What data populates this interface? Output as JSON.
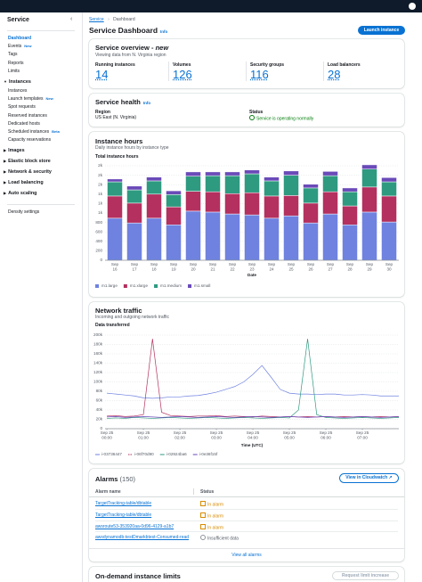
{
  "sidebar": {
    "title": "Service",
    "links": [
      {
        "label": "Dashboard"
      },
      {
        "label": "Events",
        "badge": "New"
      },
      {
        "label": "Tags"
      },
      {
        "label": "Reports"
      },
      {
        "label": "Limits"
      }
    ],
    "sections": [
      {
        "title": "Instances",
        "links": [
          {
            "label": "Instances"
          },
          {
            "label": "Launch templates",
            "badge": "New"
          },
          {
            "label": "Spot requests"
          },
          {
            "label": "Reserved instances"
          },
          {
            "label": "Dedicated hosts"
          },
          {
            "label": "Scheduled instances",
            "badge": "Beta"
          },
          {
            "label": "Capacity reservations"
          }
        ]
      },
      {
        "title": "Images"
      },
      {
        "title": "Elastic block store"
      },
      {
        "title": "Network & security"
      },
      {
        "title": "Load balancing"
      },
      {
        "title": "Auto scaling"
      }
    ],
    "footer": "Density settings"
  },
  "breadcrumb": [
    "Service",
    "Dashboard"
  ],
  "header": {
    "title": "Service Dashboard",
    "info": "Info",
    "button": "Launch instance"
  },
  "overview": {
    "title": "Service overview -",
    "tag": "new",
    "subtitle": "Viewing data from N. Virginia region",
    "stats": [
      {
        "label": "Running instances",
        "value": 14
      },
      {
        "label": "Volumes",
        "value": 126
      },
      {
        "label": "Security groups",
        "value": 116
      },
      {
        "label": "Load balancers",
        "value": 28
      }
    ]
  },
  "health": {
    "title": "Service health",
    "info": "Info",
    "region_label": "Region",
    "region": "US East (N. Virginia)",
    "status_label": "Status",
    "status": "Service is operating normally"
  },
  "chart_data": [
    {
      "type": "bar",
      "stacked": true,
      "title": "Instance hours",
      "subtitle": "Daily instance hours by instance type",
      "y_label": "Total instance hours",
      "x_label": "Date",
      "categories": [
        "Sep 16",
        "Sep 17",
        "Sep 18",
        "Sep 19",
        "Sep 20",
        "Sep 21",
        "Sep 22",
        "Sep 23",
        "Sep 24",
        "Sep 25",
        "Sep 26",
        "Sep 27",
        "Sep 28",
        "Sep 29",
        "Sep 30"
      ],
      "series": [
        {
          "name": "m1.large",
          "color": "#6f82e0",
          "values": [
            890,
            790,
            890,
            750,
            1040,
            1020,
            980,
            960,
            890,
            940,
            790,
            980,
            750,
            1020,
            810
          ]
        },
        {
          "name": "m1.xlarge",
          "color": "#b3305f",
          "values": [
            470,
            420,
            510,
            380,
            420,
            430,
            430,
            470,
            470,
            430,
            420,
            470,
            400,
            530,
            550
          ]
        },
        {
          "name": "m1.medium",
          "color": "#2e9a80",
          "values": [
            300,
            280,
            280,
            260,
            320,
            340,
            380,
            400,
            320,
            430,
            320,
            340,
            300,
            380,
            300
          ]
        },
        {
          "name": "m1.small",
          "color": "#6a4ab8",
          "values": [
            60,
            80,
            80,
            80,
            90,
            80,
            80,
            80,
            80,
            90,
            80,
            90,
            80,
            90,
            90
          ]
        }
      ],
      "ylim": [
        0,
        2000
      ],
      "yticks": [
        0,
        200,
        400,
        600,
        800,
        {
          "value": 1000,
          "label": "1k"
        },
        {
          "value": 1200,
          "label": "1k"
        },
        {
          "value": 1400,
          "label": "1k"
        },
        {
          "value": 1600,
          "label": "2k"
        },
        {
          "value": 1800,
          "label": "2k"
        },
        {
          "value": 2000,
          "label": "2k"
        }
      ],
      "grid": true,
      "legend": "bottom-left"
    },
    {
      "type": "line",
      "title": "Network traffic",
      "subtitle": "Incoming and outgoing network traffic",
      "y_label": "Data transferred",
      "x_label": "Time (UTC)",
      "x": [
        0,
        0.25,
        0.5,
        0.75,
        1,
        1.25,
        1.5,
        1.75,
        2,
        2.25,
        2.5,
        2.75,
        3,
        3.25,
        3.5,
        3.75,
        4,
        4.25,
        4.5,
        4.75,
        5,
        5.25,
        5.5,
        5.75,
        6,
        6.25,
        6.5,
        6.75,
        7,
        7.25,
        7.5,
        7.75,
        8
      ],
      "series": [
        {
          "name": "i-03736447",
          "color": "#6f82e0",
          "values": [
            76000,
            74000,
            72000,
            70000,
            66000,
            65000,
            66000,
            68000,
            68000,
            70000,
            71000,
            74000,
            78000,
            84000,
            90000,
            100000,
            116000,
            135000,
            110000,
            84000,
            76000,
            74000,
            74000,
            73000,
            74000,
            74000,
            72000,
            72000,
            73000,
            72000,
            70000,
            70000,
            70000
          ]
        },
        {
          "name": "i-06f70d90",
          "color": "#b3305f",
          "values": [
            27000,
            28000,
            26000,
            27000,
            30000,
            192000,
            35000,
            28000,
            27000,
            26000,
            27000,
            27000,
            28000,
            26000,
            27000,
            26000,
            25000,
            27000,
            26000,
            25000,
            26000,
            25000,
            26000,
            25000,
            26000,
            25000,
            26000,
            25000,
            26000,
            25000,
            26000,
            25000,
            26000
          ]
        },
        {
          "name": "i-02924ba6",
          "color": "#2e9a80",
          "values": [
            22000,
            23000,
            22000,
            24000,
            23000,
            22000,
            23000,
            24000,
            23000,
            22000,
            23000,
            24000,
            23000,
            22000,
            23000,
            24000,
            23000,
            22000,
            23000,
            24000,
            23000,
            40000,
            192000,
            30000,
            24000,
            23000,
            22000,
            23000,
            24000,
            23000,
            22000,
            23000,
            24000
          ]
        },
        {
          "name": "i-0e36f15f",
          "color": "#6a4ab8",
          "values": [
            25000,
            26000,
            24000,
            25000,
            26000,
            25000,
            24000,
            25000,
            26000,
            25000,
            24000,
            25000,
            26000,
            25000,
            24000,
            25000,
            26000,
            25000,
            24000,
            25000,
            26000,
            25000,
            24000,
            25000,
            26000,
            25000,
            24000,
            25000,
            26000,
            25000,
            24000,
            25000,
            26000
          ]
        }
      ],
      "xlim": [
        -0.05,
        8
      ],
      "xticks": [
        {
          "value": 0,
          "label": "Sep 25 00:00"
        },
        {
          "value": 1,
          "label": "Sep 25 01:00"
        },
        {
          "value": 2,
          "label": "Sep 25 02:00"
        },
        {
          "value": 3,
          "label": "Sep 25 03:00"
        },
        {
          "value": 4,
          "label": "Sep 25 04:00"
        },
        {
          "value": 5,
          "label": "Sep 25 05:00"
        },
        {
          "value": 6,
          "label": "Sep 25 06:00"
        },
        {
          "value": 7,
          "label": "Sep 25 07:00"
        }
      ],
      "ylim": [
        0,
        200000
      ],
      "yticks": [
        0,
        {
          "value": 20000,
          "label": "20k"
        },
        {
          "value": 40000,
          "label": "40k"
        },
        {
          "value": 60000,
          "label": "60k"
        },
        {
          "value": 80000,
          "label": "80k"
        },
        {
          "value": 100000,
          "label": "100k"
        },
        {
          "value": 120000,
          "label": "120k"
        },
        {
          "value": 140000,
          "label": "140k"
        },
        {
          "value": 160000,
          "label": "160k"
        },
        {
          "value": 180000,
          "label": "180k"
        },
        {
          "value": 200000,
          "label": "200k"
        }
      ],
      "grid": true,
      "legend": "bottom-left"
    }
  ],
  "alarms": {
    "title": "Alarms",
    "count": "(150)",
    "button": "View in Cloudwatch",
    "columns": [
      "Alarm name",
      "Status"
    ],
    "rows": [
      {
        "name": "TargetTracking-table/dbtable",
        "status": "In alarm",
        "status_color": "#d98b00"
      },
      {
        "name": "TargetTracking-table/dbtable",
        "status": "In alarm",
        "status_color": "#d98b00"
      },
      {
        "name": "awsroute53-353920aa-0d96-4129-a1b7",
        "status": "In alarm",
        "status_color": "#d98b00"
      },
      {
        "name": "awsdynamodb-testDmarkbtest-Consumed-read",
        "status": "Insufficient data",
        "status_color": "#8d9399"
      }
    ],
    "footer": "View all alarms"
  },
  "limits": {
    "title": "On-demand instance limits",
    "button": "Request limit increase"
  }
}
